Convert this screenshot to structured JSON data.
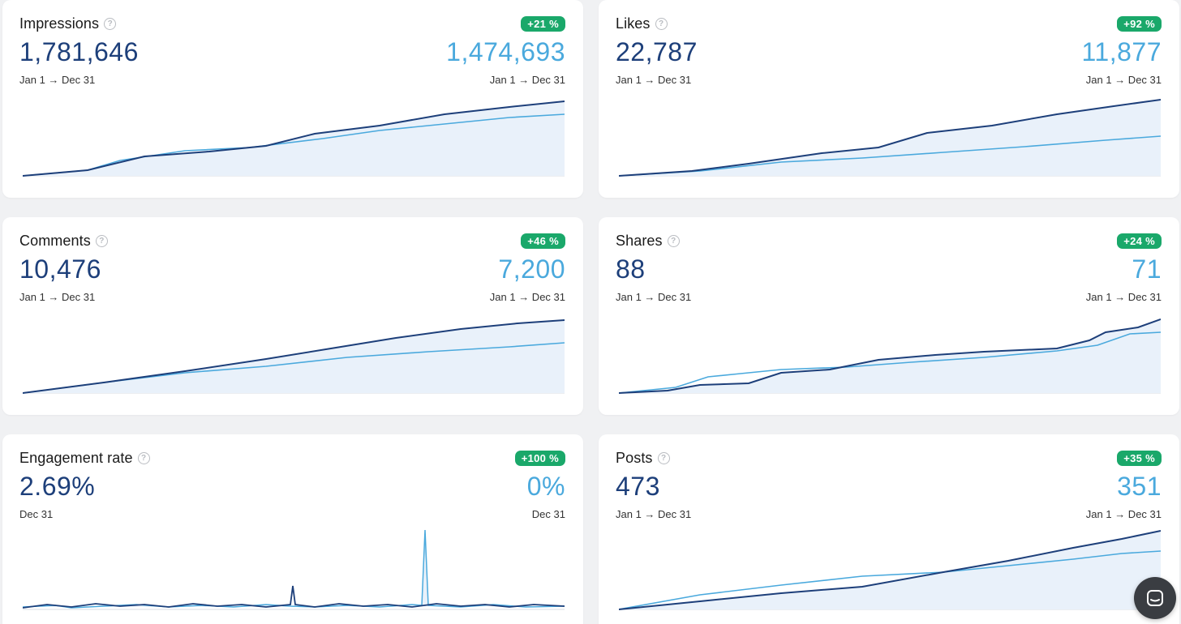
{
  "colors": {
    "current": "#1d3f7a",
    "previous": "#4aa9dd",
    "badge": "#1aa86a",
    "area": "#e9f1fa"
  },
  "cards": [
    {
      "title": "Impressions",
      "badge": "+21 %",
      "value": "1,781,646",
      "prev_value": "1,474,693",
      "range": "Jan 1 → Dec 31",
      "prev_range": "Jan 1 → Dec 31"
    },
    {
      "title": "Likes",
      "badge": "+92 %",
      "value": "22,787",
      "prev_value": "11,877",
      "range": "Jan 1 → Dec 31",
      "prev_range": "Jan 1 → Dec 31"
    },
    {
      "title": "Comments",
      "badge": "+46 %",
      "value": "10,476",
      "prev_value": "7,200",
      "range": "Jan 1 → Dec 31",
      "prev_range": "Jan 1 → Dec 31"
    },
    {
      "title": "Shares",
      "badge": "+24 %",
      "value": "88",
      "prev_value": "71",
      "range": "Jan 1 → Dec 31",
      "prev_range": "Jan 1 → Dec 31"
    },
    {
      "title": "Engagement rate",
      "badge": "+100 %",
      "value": "2.69%",
      "prev_value": "0%",
      "range": "Dec 31",
      "prev_range": "Dec 31"
    },
    {
      "title": "Posts",
      "badge": "+35 %",
      "value": "473",
      "prev_value": "351",
      "range": "Jan 1 → Dec 31",
      "prev_range": "Jan 1 → Dec 31"
    }
  ],
  "chat_icon": "chat-bubble-icon"
}
